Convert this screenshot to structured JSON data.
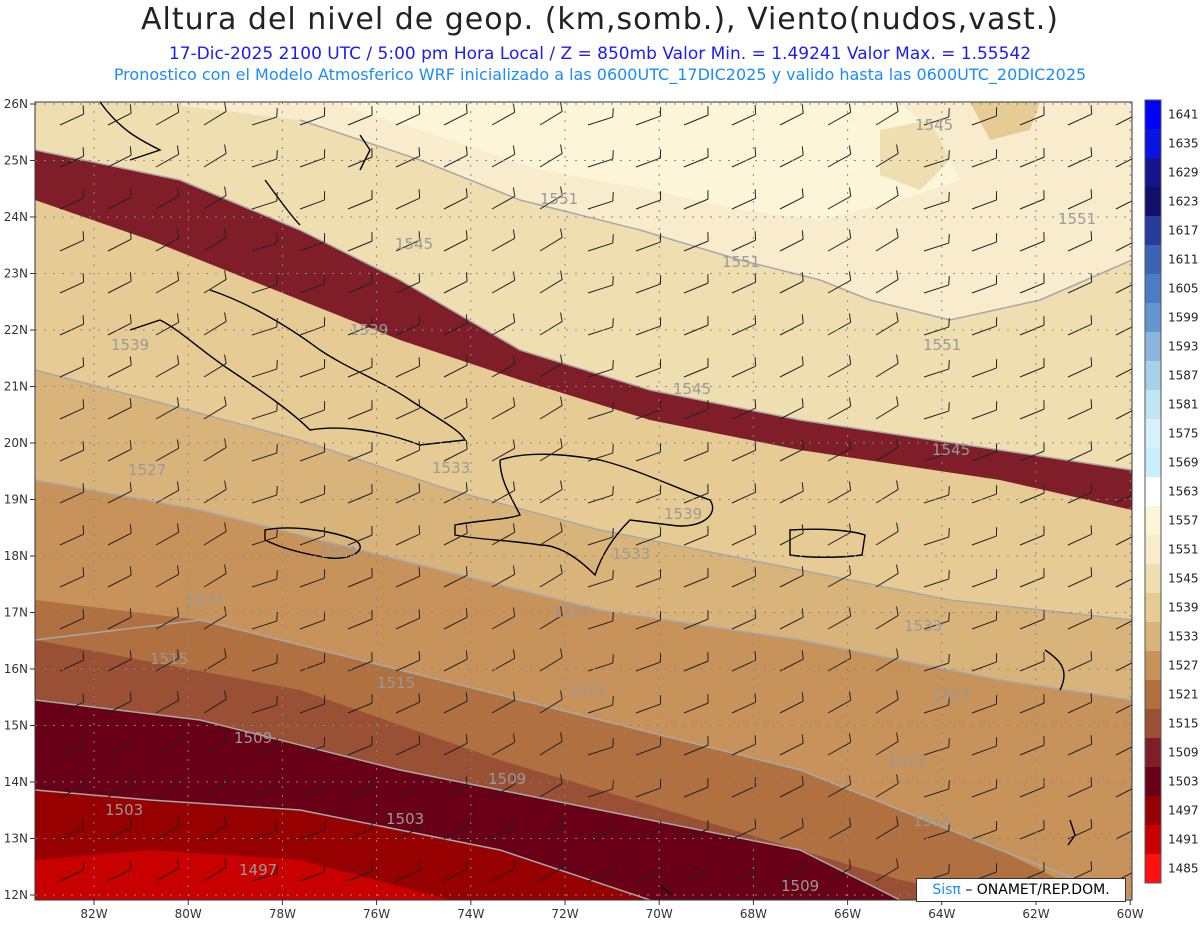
{
  "header": {
    "title": "Altura del nivel de geop. (km,somb.), Viento(nudos,vast.)",
    "subtitle1": "17-Dic-2025   2100 UTC / 5:00 pm Hora Local / Z = 850mb     Valor Min. = 1.49241   Valor Max. = 1.55542",
    "subtitle2": "Pronostico con el Modelo Atmosferico WRF inicializado a las 0600UTC_17DIC2025 y valido hasta las  0600UTC_20DIC2025"
  },
  "axes": {
    "lat_labels": [
      "26N",
      "25N",
      "24N",
      "23N",
      "22N",
      "21N",
      "20N",
      "19N",
      "18N",
      "17N",
      "16N",
      "15N",
      "14N",
      "13N",
      "12N"
    ],
    "lon_labels": [
      "82W",
      "80W",
      "78W",
      "76W",
      "74W",
      "72W",
      "70W",
      "68W",
      "66W",
      "64W",
      "62W",
      "60W"
    ]
  },
  "colorbar": {
    "levels": [
      "1641",
      "1635",
      "1629",
      "1623",
      "1617",
      "1611",
      "1605",
      "1599",
      "1593",
      "1587",
      "1581",
      "1575",
      "1569",
      "1563",
      "1557",
      "1551",
      "1545",
      "1539",
      "1533",
      "1527",
      "1521",
      "1515",
      "1509",
      "1503",
      "1497",
      "1491",
      "1485"
    ],
    "colors": [
      "#0000ff",
      "#0a14e0",
      "#14148c",
      "#10106a",
      "#283c9c",
      "#3c64b4",
      "#4c7cc4",
      "#6496d0",
      "#8cb4dc",
      "#a8d0e8",
      "#c0e4f0",
      "#d8f0f8",
      "#c8f0fc",
      "#ffffff",
      "#fdf5d8",
      "#f8eccc",
      "#efdfb0",
      "#e6cc94",
      "#d9b47a",
      "#c8935a",
      "#b0703f",
      "#9a5034",
      "#7f1e28",
      "#6a0018",
      "#960000",
      "#c80000",
      "#ff1010"
    ]
  },
  "contour_labels": [
    "1545",
    "1551",
    "1545",
    "1551",
    "1551",
    "1551",
    "1539",
    "1545",
    "1545",
    "1539",
    "1533",
    "1539",
    "1533",
    "1527",
    "1521",
    "1527",
    "1533",
    "1527",
    "1515",
    "1515",
    "1521",
    "1521",
    "1509",
    "1509",
    "1521",
    "1503",
    "1503",
    "1515",
    "1497",
    "1509"
  ],
  "logo": {
    "brand": "Sisπ",
    "text": "– ONAMET/REP.DOM."
  }
}
